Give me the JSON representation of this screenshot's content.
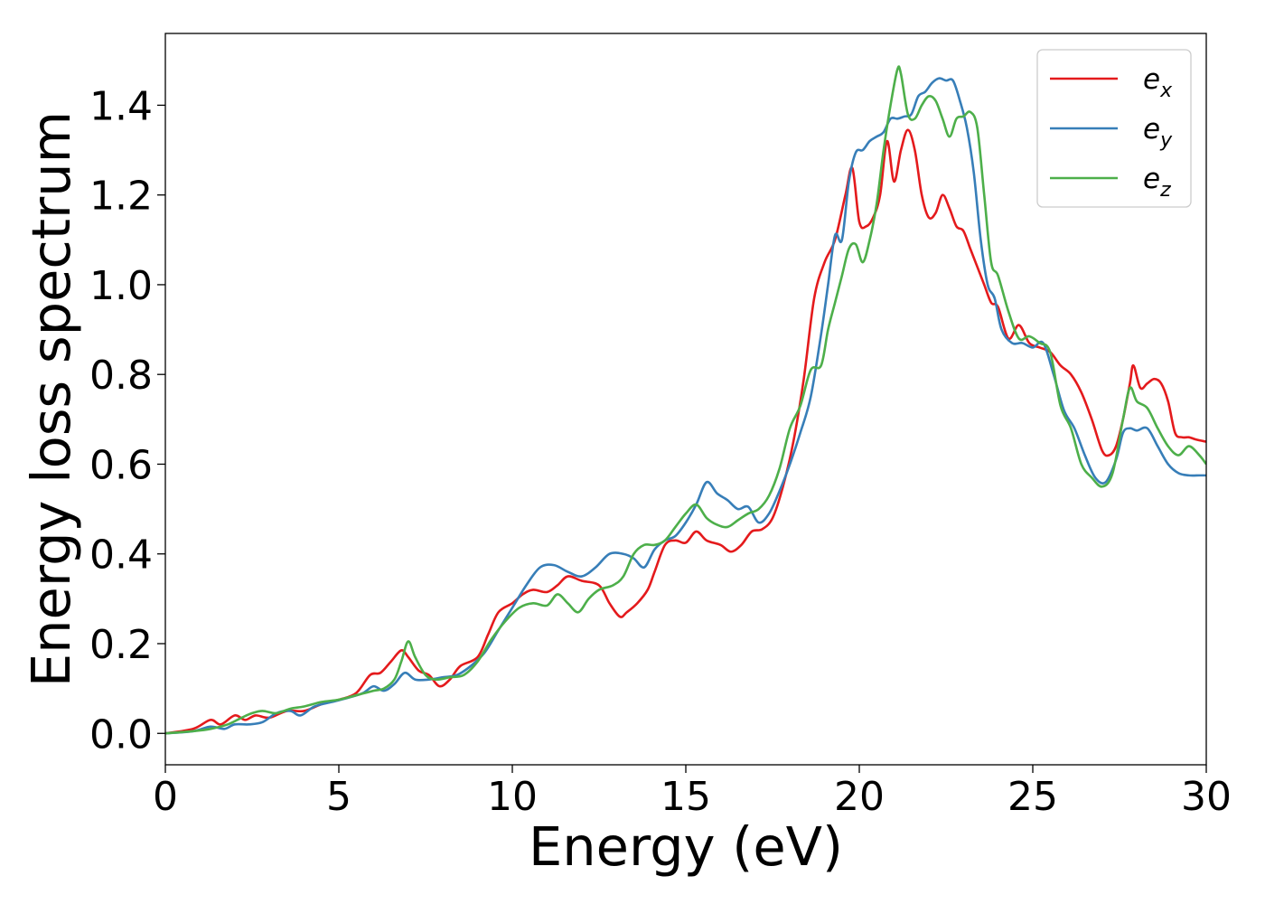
{
  "chart_data": {
    "type": "line",
    "title": "",
    "xlabel": "Energy (eV)",
    "ylabel": "Energy loss spectrum",
    "xlim": [
      0,
      30
    ],
    "ylim": [
      -0.07,
      1.56
    ],
    "xticks": [
      0,
      5,
      10,
      15,
      20,
      25,
      30
    ],
    "yticks": [
      0.0,
      0.2,
      0.4,
      0.6,
      0.8,
      1.0,
      1.2,
      1.4
    ],
    "xtick_labels": [
      "0",
      "5",
      "10",
      "15",
      "20",
      "25",
      "30"
    ],
    "ytick_labels": [
      "0.0",
      "0.2",
      "0.4",
      "0.6",
      "0.8",
      "1.0",
      "1.2",
      "1.4"
    ],
    "grid": false,
    "legend_position": "top-right",
    "series": [
      {
        "name": "e_x",
        "label_base": "e",
        "label_sub": "x",
        "color": "#e41a1c",
        "x": [
          0,
          0.8,
          1.3,
          1.6,
          2.0,
          2.3,
          2.6,
          3.0,
          3.5,
          4.0,
          4.5,
          5.0,
          5.5,
          5.9,
          6.2,
          6.5,
          6.8,
          7.0,
          7.3,
          7.6,
          7.9,
          8.2,
          8.5,
          9.0,
          9.3,
          9.6,
          10.0,
          10.3,
          10.6,
          11.0,
          11.3,
          11.6,
          12.0,
          12.5,
          12.8,
          13.1,
          13.3,
          13.6,
          13.9,
          14.1,
          14.4,
          14.7,
          15.0,
          15.3,
          15.6,
          16.0,
          16.3,
          16.6,
          16.9,
          17.2,
          17.5,
          17.8,
          18.1,
          18.4,
          18.7,
          19.0,
          19.3,
          19.6,
          19.8,
          20.0,
          20.2,
          20.4,
          20.6,
          20.8,
          21.0,
          21.2,
          21.4,
          21.6,
          21.8,
          22.0,
          22.2,
          22.4,
          22.6,
          22.8,
          23.0,
          23.2,
          23.4,
          23.6,
          23.8,
          24.0,
          24.3,
          24.6,
          24.9,
          25.2,
          25.5,
          25.8,
          26.1,
          26.4,
          26.7,
          27.0,
          27.2,
          27.4,
          27.6,
          27.8,
          27.9,
          28.1,
          28.3,
          28.5,
          28.7,
          28.9,
          29.1,
          29.3,
          29.5,
          29.7,
          30.0
        ],
        "y": [
          0.0,
          0.01,
          0.03,
          0.02,
          0.04,
          0.03,
          0.04,
          0.035,
          0.05,
          0.05,
          0.065,
          0.075,
          0.09,
          0.13,
          0.135,
          0.16,
          0.185,
          0.17,
          0.14,
          0.13,
          0.105,
          0.12,
          0.15,
          0.17,
          0.22,
          0.27,
          0.29,
          0.31,
          0.32,
          0.315,
          0.33,
          0.35,
          0.34,
          0.33,
          0.29,
          0.26,
          0.27,
          0.29,
          0.32,
          0.36,
          0.42,
          0.43,
          0.425,
          0.45,
          0.43,
          0.42,
          0.405,
          0.42,
          0.45,
          0.455,
          0.48,
          0.55,
          0.65,
          0.79,
          0.97,
          1.05,
          1.1,
          1.2,
          1.26,
          1.14,
          1.13,
          1.15,
          1.2,
          1.32,
          1.23,
          1.3,
          1.345,
          1.3,
          1.2,
          1.15,
          1.16,
          1.2,
          1.17,
          1.13,
          1.12,
          1.08,
          1.04,
          1.0,
          0.96,
          0.95,
          0.88,
          0.91,
          0.87,
          0.86,
          0.85,
          0.82,
          0.8,
          0.76,
          0.7,
          0.63,
          0.62,
          0.64,
          0.7,
          0.78,
          0.82,
          0.77,
          0.78,
          0.79,
          0.78,
          0.74,
          0.67,
          0.66,
          0.66,
          0.655,
          0.65
        ]
      },
      {
        "name": "e_y",
        "label_base": "e",
        "label_sub": "y",
        "color": "#377eb8",
        "x": [
          0,
          0.8,
          1.3,
          1.7,
          2.0,
          2.4,
          2.8,
          3.2,
          3.6,
          3.9,
          4.3,
          4.8,
          5.3,
          5.7,
          6.0,
          6.3,
          6.6,
          6.9,
          7.2,
          7.6,
          8.0,
          8.4,
          8.8,
          9.2,
          9.6,
          10.0,
          10.4,
          10.8,
          11.2,
          11.6,
          12.0,
          12.4,
          12.8,
          13.2,
          13.5,
          13.8,
          14.1,
          14.4,
          14.7,
          15.0,
          15.3,
          15.6,
          15.9,
          16.2,
          16.5,
          16.8,
          17.1,
          17.4,
          17.7,
          18.0,
          18.3,
          18.6,
          18.9,
          19.1,
          19.3,
          19.5,
          19.7,
          19.9,
          20.1,
          20.3,
          20.5,
          20.7,
          20.9,
          21.1,
          21.3,
          21.5,
          21.7,
          21.9,
          22.1,
          22.3,
          22.5,
          22.7,
          22.9,
          23.1,
          23.3,
          23.5,
          23.7,
          23.9,
          24.1,
          24.4,
          24.7,
          25.0,
          25.3,
          25.6,
          25.9,
          26.2,
          26.5,
          26.8,
          27.1,
          27.4,
          27.6,
          27.8,
          28.0,
          28.3,
          28.6,
          28.9,
          29.2,
          29.5,
          29.8,
          30.0
        ],
        "y": [
          0.0,
          0.005,
          0.015,
          0.01,
          0.02,
          0.02,
          0.025,
          0.045,
          0.05,
          0.04,
          0.06,
          0.07,
          0.08,
          0.09,
          0.105,
          0.095,
          0.11,
          0.135,
          0.12,
          0.12,
          0.125,
          0.13,
          0.15,
          0.18,
          0.23,
          0.28,
          0.33,
          0.37,
          0.375,
          0.36,
          0.35,
          0.37,
          0.4,
          0.4,
          0.39,
          0.37,
          0.41,
          0.43,
          0.44,
          0.47,
          0.51,
          0.56,
          0.535,
          0.52,
          0.5,
          0.505,
          0.47,
          0.49,
          0.54,
          0.6,
          0.67,
          0.75,
          0.89,
          1.0,
          1.11,
          1.1,
          1.23,
          1.295,
          1.3,
          1.32,
          1.33,
          1.34,
          1.37,
          1.37,
          1.375,
          1.38,
          1.42,
          1.43,
          1.45,
          1.46,
          1.455,
          1.455,
          1.41,
          1.35,
          1.25,
          1.1,
          1.0,
          0.97,
          0.9,
          0.87,
          0.87,
          0.86,
          0.87,
          0.8,
          0.72,
          0.68,
          0.62,
          0.57,
          0.56,
          0.61,
          0.67,
          0.68,
          0.675,
          0.68,
          0.64,
          0.6,
          0.58,
          0.575,
          0.575,
          0.575
        ]
      },
      {
        "name": "e_z",
        "label_base": "e",
        "label_sub": "z",
        "color": "#4daf4a",
        "x": [
          0,
          0.8,
          1.3,
          1.8,
          2.2,
          2.5,
          2.8,
          3.2,
          3.6,
          4.0,
          4.5,
          5.0,
          5.5,
          6.0,
          6.3,
          6.6,
          6.8,
          7.0,
          7.2,
          7.5,
          7.8,
          8.2,
          8.6,
          9.0,
          9.4,
          9.8,
          10.2,
          10.6,
          11.0,
          11.3,
          11.6,
          11.9,
          12.2,
          12.5,
          12.9,
          13.2,
          13.5,
          13.8,
          14.1,
          14.4,
          14.7,
          15.0,
          15.3,
          15.6,
          15.9,
          16.2,
          16.5,
          16.8,
          17.1,
          17.4,
          17.7,
          18.0,
          18.3,
          18.6,
          18.9,
          19.1,
          19.3,
          19.5,
          19.7,
          19.9,
          20.1,
          20.3,
          20.5,
          20.7,
          20.9,
          21.1,
          21.2,
          21.4,
          21.6,
          21.8,
          22.0,
          22.2,
          22.4,
          22.6,
          22.8,
          23.0,
          23.2,
          23.4,
          23.6,
          23.8,
          24.0,
          24.3,
          24.6,
          24.9,
          25.2,
          25.5,
          25.8,
          26.1,
          26.4,
          26.7,
          27.0,
          27.3,
          27.6,
          27.8,
          28.0,
          28.3,
          28.6,
          28.9,
          29.2,
          29.5,
          29.8,
          30.0
        ],
        "y": [
          0.0,
          0.005,
          0.01,
          0.02,
          0.035,
          0.045,
          0.05,
          0.045,
          0.055,
          0.06,
          0.07,
          0.075,
          0.085,
          0.095,
          0.1,
          0.12,
          0.16,
          0.205,
          0.17,
          0.13,
          0.12,
          0.125,
          0.13,
          0.16,
          0.21,
          0.25,
          0.28,
          0.29,
          0.285,
          0.31,
          0.29,
          0.27,
          0.3,
          0.32,
          0.33,
          0.35,
          0.4,
          0.42,
          0.42,
          0.43,
          0.46,
          0.49,
          0.51,
          0.48,
          0.465,
          0.46,
          0.475,
          0.49,
          0.5,
          0.53,
          0.59,
          0.68,
          0.73,
          0.81,
          0.82,
          0.9,
          0.96,
          1.02,
          1.08,
          1.09,
          1.05,
          1.1,
          1.18,
          1.3,
          1.4,
          1.48,
          1.47,
          1.38,
          1.37,
          1.4,
          1.42,
          1.41,
          1.37,
          1.33,
          1.37,
          1.375,
          1.385,
          1.35,
          1.2,
          1.05,
          1.02,
          0.94,
          0.88,
          0.885,
          0.87,
          0.85,
          0.73,
          0.68,
          0.6,
          0.57,
          0.55,
          0.58,
          0.7,
          0.77,
          0.74,
          0.725,
          0.68,
          0.64,
          0.62,
          0.64,
          0.62,
          0.6
        ]
      }
    ]
  }
}
